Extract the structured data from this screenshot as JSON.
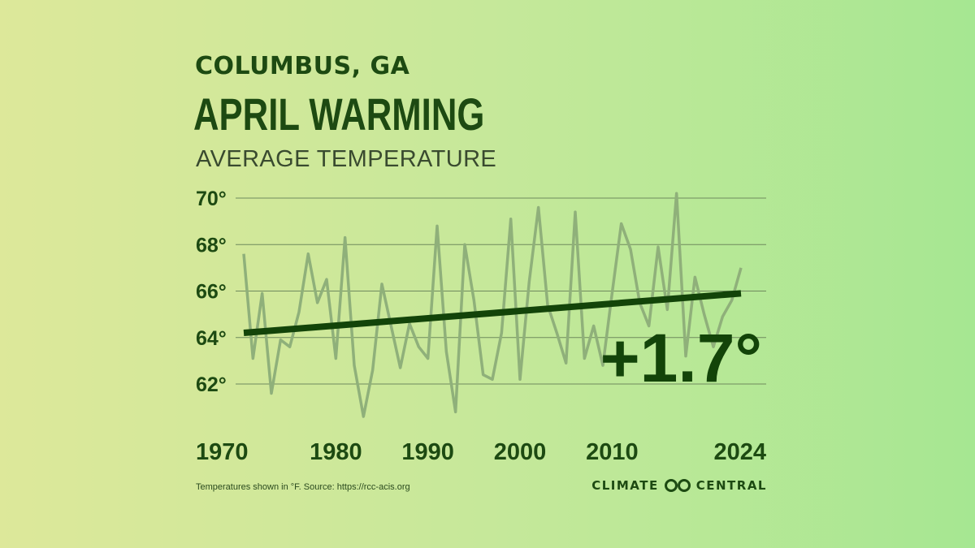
{
  "header": {
    "location": "COLUMBUS, GA",
    "title": "APRIL WARMING",
    "subtitle": "AVERAGE TEMPERATURE"
  },
  "annotation": {
    "change": "+1.7°"
  },
  "footer": {
    "note": "Temperatures shown in °F. Source: https://rcc-acis.org",
    "brand_left": "CLIMATE",
    "brand_right": "CENTRAL",
    "brand_icon": "infinity-logo-icon"
  },
  "colors": {
    "series": "#8fb07a",
    "trend": "#134409",
    "grid": "#6f8a5d",
    "text": "#1d4a12"
  },
  "chart_data": {
    "type": "line",
    "title": "APRIL WARMING",
    "subtitle": "AVERAGE TEMPERATURE",
    "xlabel": "",
    "ylabel": "",
    "xlim": [
      1970,
      2024
    ],
    "ylim": [
      61,
      70.5
    ],
    "xticks": [
      1970,
      1980,
      1990,
      2000,
      2010,
      2024
    ],
    "xtick_labels": [
      "1970",
      "1980",
      "1990",
      "2000",
      "2010",
      "2024"
    ],
    "yticks": [
      62,
      64,
      66,
      68,
      70
    ],
    "ytick_labels": [
      "62°",
      "64°",
      "66°",
      "68°",
      "70°"
    ],
    "grid": true,
    "legend": "none",
    "series": [
      {
        "x": [
          1970,
          1971,
          1972,
          1973,
          1974,
          1975,
          1976,
          1977,
          1978,
          1979,
          1980,
          1981,
          1982,
          1983,
          1984,
          1985,
          1986,
          1987,
          1988,
          1989,
          1990,
          1991,
          1992,
          1993,
          1994,
          1995,
          1996,
          1997,
          1998,
          1999,
          2000,
          2001,
          2002,
          2003,
          2004,
          2005,
          2006,
          2007,
          2008,
          2009,
          2010,
          2011,
          2012,
          2013,
          2014,
          2015,
          2016,
          2017,
          2018,
          2019,
          2020,
          2021,
          2022,
          2023,
          2024
        ],
        "values": [
          67.6,
          63.1,
          65.9,
          61.6,
          63.9,
          63.6,
          65.1,
          67.6,
          65.5,
          66.5,
          63.1,
          68.3,
          62.8,
          60.6,
          62.6,
          66.3,
          64.5,
          62.7,
          64.6,
          63.6,
          63.1,
          68.8,
          63.4,
          60.8,
          68.0,
          65.6,
          62.4,
          62.2,
          64.2,
          69.1,
          62.2,
          66.4,
          69.6,
          65.4,
          64.2,
          62.9,
          69.4,
          63.1,
          64.5,
          62.8,
          65.9,
          68.9,
          67.8,
          65.5,
          64.5,
          67.9,
          65.2,
          70.2,
          63.2,
          66.6,
          65.0,
          63.6,
          64.9,
          65.6,
          67.0
        ]
      },
      {
        "name": "trend",
        "x": [
          1970,
          2024
        ],
        "values": [
          64.2,
          65.9
        ]
      }
    ]
  }
}
